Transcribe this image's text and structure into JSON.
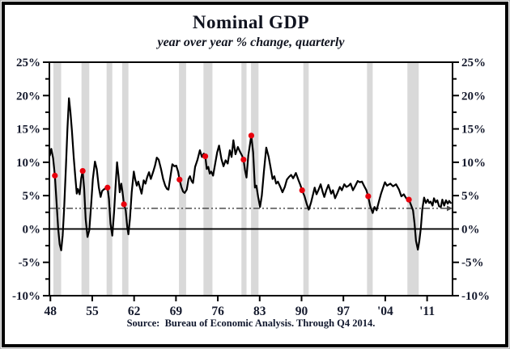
{
  "header": {
    "title": "Nominal GDP",
    "subtitle": "year over year % change, quarterly"
  },
  "footer": {
    "source": "Source:  Bureau of Economic Analysis. Through Q4 2014."
  },
  "chart_data": {
    "type": "line",
    "title": "Nominal GDP",
    "subtitle": "year over year % change, quarterly",
    "grid": "off",
    "legend": "none",
    "x_axis": {
      "range": [
        1947.83,
        2015.25
      ],
      "tick_years": [
        1948,
        1955,
        1962,
        1969,
        1976,
        1983,
        1990,
        1997,
        2004,
        2011
      ],
      "tick_labels": [
        "48",
        "55",
        "62",
        "69",
        "76",
        "83",
        "90",
        "97",
        "'04",
        "'11"
      ]
    },
    "y_axis": {
      "range": [
        -10,
        25
      ],
      "major_ticks": [
        25,
        20,
        15,
        10,
        5,
        0,
        -5,
        -10
      ],
      "major_tick_labels": [
        "25%",
        "20%",
        "15%",
        "10%",
        "5%",
        "0%",
        "-5%",
        "-10%"
      ],
      "minor_step": 2.5,
      "labels_on_both_sides": true
    },
    "zero_line": 0,
    "average_line": {
      "value": 3.1,
      "style": "dash-dot-dot",
      "arrow_right": true,
      "end_year": 2014.3
    },
    "recessions": [
      [
        1948.5,
        1949.8
      ],
      [
        1953.2,
        1954.5
      ],
      [
        1957.4,
        1958.35
      ],
      [
        1960.0,
        1961.05
      ],
      [
        1969.5,
        1970.7
      ],
      [
        1973.6,
        1975.1
      ],
      [
        1979.95,
        1980.8
      ],
      [
        1981.55,
        1982.8
      ],
      [
        1990.3,
        1991.2
      ],
      [
        2000.95,
        2001.9
      ],
      [
        2007.7,
        2009.6
      ]
    ],
    "series": [
      {
        "name": "Nominal GDP yoy % change",
        "points": [
          [
            1947.9,
            11.0
          ],
          [
            1948.15,
            12.0
          ],
          [
            1948.45,
            10.6
          ],
          [
            1948.75,
            8.0
          ],
          [
            1949.0,
            4.5
          ],
          [
            1949.3,
            0.0
          ],
          [
            1949.55,
            -2.3
          ],
          [
            1949.8,
            -3.2
          ],
          [
            1950.05,
            -1.0
          ],
          [
            1950.3,
            3.0
          ],
          [
            1950.6,
            9.5
          ],
          [
            1950.85,
            15.0
          ],
          [
            1951.1,
            19.6
          ],
          [
            1951.35,
            17.5
          ],
          [
            1951.6,
            14.8
          ],
          [
            1951.9,
            10.7
          ],
          [
            1952.15,
            8.0
          ],
          [
            1952.4,
            5.3
          ],
          [
            1952.6,
            6.0
          ],
          [
            1952.9,
            5.2
          ],
          [
            1953.15,
            7.6
          ],
          [
            1953.4,
            8.7
          ],
          [
            1953.65,
            6.0
          ],
          [
            1953.9,
            1.5
          ],
          [
            1954.2,
            -1.2
          ],
          [
            1954.5,
            -0.2
          ],
          [
            1954.8,
            3.5
          ],
          [
            1955.1,
            7.5
          ],
          [
            1955.45,
            10.1
          ],
          [
            1955.75,
            9.0
          ],
          [
            1956.1,
            6.2
          ],
          [
            1956.4,
            4.8
          ],
          [
            1956.65,
            5.7
          ],
          [
            1956.9,
            5.9
          ],
          [
            1957.2,
            6.1
          ],
          [
            1957.55,
            6.2
          ],
          [
            1957.8,
            4.5
          ],
          [
            1958.05,
            0.8
          ],
          [
            1958.35,
            -1.0
          ],
          [
            1958.65,
            2.5
          ],
          [
            1958.9,
            6.5
          ],
          [
            1959.15,
            10.0
          ],
          [
            1959.4,
            7.8
          ],
          [
            1959.6,
            5.5
          ],
          [
            1959.85,
            6.8
          ],
          [
            1960.05,
            5.6
          ],
          [
            1960.3,
            3.7
          ],
          [
            1960.6,
            2.8
          ],
          [
            1960.85,
            0.3
          ],
          [
            1961.05,
            -0.8
          ],
          [
            1961.3,
            1.5
          ],
          [
            1961.6,
            5.5
          ],
          [
            1961.95,
            8.6
          ],
          [
            1962.2,
            7.4
          ],
          [
            1962.45,
            6.5
          ],
          [
            1962.7,
            7.1
          ],
          [
            1963.0,
            6.1
          ],
          [
            1963.25,
            5.3
          ],
          [
            1963.6,
            7.3
          ],
          [
            1963.9,
            6.8
          ],
          [
            1964.2,
            7.8
          ],
          [
            1964.5,
            8.5
          ],
          [
            1964.8,
            7.5
          ],
          [
            1965.2,
            8.6
          ],
          [
            1965.5,
            9.5
          ],
          [
            1965.8,
            10.7
          ],
          [
            1966.1,
            10.4
          ],
          [
            1966.5,
            9.0
          ],
          [
            1966.85,
            7.5
          ],
          [
            1967.2,
            6.5
          ],
          [
            1967.5,
            6.0
          ],
          [
            1967.75,
            5.9
          ],
          [
            1968.1,
            8.0
          ],
          [
            1968.4,
            9.7
          ],
          [
            1968.75,
            9.4
          ],
          [
            1969.05,
            9.5
          ],
          [
            1969.35,
            8.6
          ],
          [
            1969.6,
            7.4
          ],
          [
            1969.9,
            6.3
          ],
          [
            1970.2,
            5.6
          ],
          [
            1970.45,
            5.4
          ],
          [
            1970.8,
            5.9
          ],
          [
            1971.1,
            7.5
          ],
          [
            1971.35,
            7.9
          ],
          [
            1971.6,
            7.2
          ],
          [
            1971.85,
            6.9
          ],
          [
            1972.2,
            9.3
          ],
          [
            1972.6,
            10.4
          ],
          [
            1973.0,
            11.8
          ],
          [
            1973.35,
            10.8
          ],
          [
            1973.65,
            11.3
          ],
          [
            1973.9,
            10.9
          ],
          [
            1974.15,
            9.0
          ],
          [
            1974.4,
            9.3
          ],
          [
            1974.65,
            8.3
          ],
          [
            1974.9,
            8.6
          ],
          [
            1975.2,
            8.0
          ],
          [
            1975.6,
            10.0
          ],
          [
            1975.9,
            11.5
          ],
          [
            1976.2,
            12.5
          ],
          [
            1976.6,
            10.5
          ],
          [
            1976.95,
            9.4
          ],
          [
            1977.3,
            10.3
          ],
          [
            1977.65,
            9.8
          ],
          [
            1978.0,
            11.8
          ],
          [
            1978.3,
            10.8
          ],
          [
            1978.6,
            13.3
          ],
          [
            1978.95,
            11.2
          ],
          [
            1979.35,
            12.3
          ],
          [
            1979.75,
            11.5
          ],
          [
            1980.05,
            11.0
          ],
          [
            1980.3,
            10.4
          ],
          [
            1980.55,
            8.8
          ],
          [
            1980.8,
            7.7
          ],
          [
            1981.1,
            11.0
          ],
          [
            1981.6,
            14.0
          ],
          [
            1981.9,
            11.5
          ],
          [
            1982.2,
            6.2
          ],
          [
            1982.45,
            6.5
          ],
          [
            1982.75,
            4.8
          ],
          [
            1983.05,
            3.3
          ],
          [
            1983.35,
            5.0
          ],
          [
            1983.7,
            8.6
          ],
          [
            1984.1,
            12.2
          ],
          [
            1984.5,
            10.8
          ],
          [
            1984.8,
            9.3
          ],
          [
            1985.15,
            7.5
          ],
          [
            1985.45,
            7.9
          ],
          [
            1985.75,
            6.8
          ],
          [
            1986.05,
            7.1
          ],
          [
            1986.45,
            6.3
          ],
          [
            1986.8,
            5.5
          ],
          [
            1987.2,
            6.3
          ],
          [
            1987.55,
            7.4
          ],
          [
            1987.9,
            7.8
          ],
          [
            1988.25,
            8.1
          ],
          [
            1988.6,
            7.6
          ],
          [
            1989.05,
            8.4
          ],
          [
            1989.5,
            7.3
          ],
          [
            1989.8,
            6.6
          ],
          [
            1990.1,
            5.8
          ],
          [
            1990.5,
            4.9
          ],
          [
            1990.85,
            3.8
          ],
          [
            1991.2,
            2.9
          ],
          [
            1991.6,
            4.0
          ],
          [
            1991.95,
            5.3
          ],
          [
            1992.2,
            6.2
          ],
          [
            1992.5,
            5.2
          ],
          [
            1992.9,
            6.0
          ],
          [
            1993.2,
            6.7
          ],
          [
            1993.55,
            5.5
          ],
          [
            1993.8,
            4.8
          ],
          [
            1994.15,
            5.8
          ],
          [
            1994.5,
            6.6
          ],
          [
            1994.95,
            5.3
          ],
          [
            1995.25,
            5.8
          ],
          [
            1995.6,
            4.6
          ],
          [
            1996.0,
            5.4
          ],
          [
            1996.4,
            6.3
          ],
          [
            1996.75,
            5.8
          ],
          [
            1997.15,
            6.7
          ],
          [
            1997.5,
            6.3
          ],
          [
            1997.9,
            6.5
          ],
          [
            1998.2,
            6.8
          ],
          [
            1998.6,
            5.8
          ],
          [
            1998.95,
            6.4
          ],
          [
            1999.4,
            7.2
          ],
          [
            1999.75,
            7.0
          ],
          [
            2000.1,
            7.1
          ],
          [
            2000.5,
            6.4
          ],
          [
            2000.85,
            5.8
          ],
          [
            2001.15,
            4.9
          ],
          [
            2001.5,
            3.4
          ],
          [
            2001.9,
            2.4
          ],
          [
            2002.2,
            3.3
          ],
          [
            2002.55,
            2.8
          ],
          [
            2002.9,
            4.0
          ],
          [
            2003.3,
            5.3
          ],
          [
            2003.95,
            7.0
          ],
          [
            2004.3,
            6.5
          ],
          [
            2004.85,
            6.8
          ],
          [
            2005.3,
            6.4
          ],
          [
            2005.8,
            6.7
          ],
          [
            2006.3,
            5.9
          ],
          [
            2006.7,
            4.9
          ],
          [
            2007.1,
            5.2
          ],
          [
            2007.5,
            4.6
          ],
          [
            2007.95,
            4.4
          ],
          [
            2008.3,
            3.6
          ],
          [
            2008.65,
            2.8
          ],
          [
            2008.9,
            0.8
          ],
          [
            2009.15,
            -1.8
          ],
          [
            2009.45,
            -3.1
          ],
          [
            2009.7,
            -1.8
          ],
          [
            2009.95,
            0.2
          ],
          [
            2010.2,
            3.0
          ],
          [
            2010.5,
            4.7
          ],
          [
            2010.8,
            3.9
          ],
          [
            2011.1,
            4.4
          ],
          [
            2011.35,
            3.9
          ],
          [
            2011.6,
            4.1
          ],
          [
            2011.9,
            3.5
          ],
          [
            2012.15,
            4.6
          ],
          [
            2012.45,
            4.0
          ],
          [
            2012.7,
            4.3
          ],
          [
            2013.0,
            3.4
          ],
          [
            2013.3,
            3.3
          ],
          [
            2013.55,
            4.4
          ],
          [
            2013.85,
            3.5
          ],
          [
            2014.15,
            4.3
          ],
          [
            2014.45,
            3.8
          ],
          [
            2014.7,
            4.2
          ],
          [
            2014.95,
            3.9
          ]
        ]
      }
    ],
    "markers": {
      "name": "recession-onset dots",
      "points": [
        [
          1948.75,
          8.0
        ],
        [
          1953.4,
          8.7
        ],
        [
          1957.55,
          6.2
        ],
        [
          1960.3,
          3.7
        ],
        [
          1969.6,
          7.4
        ],
        [
          1973.9,
          10.9
        ],
        [
          1980.3,
          10.4
        ],
        [
          1981.6,
          14.0
        ],
        [
          1990.1,
          5.8
        ],
        [
          2001.15,
          4.9
        ],
        [
          2007.95,
          4.4
        ]
      ]
    },
    "colors": {
      "line": "#000000",
      "marker": "#e8000d",
      "recession_band": "#d9d9d9",
      "axis": "#000000",
      "tick_label": "#151a2d",
      "average_line": "#4d4d4d"
    }
  }
}
